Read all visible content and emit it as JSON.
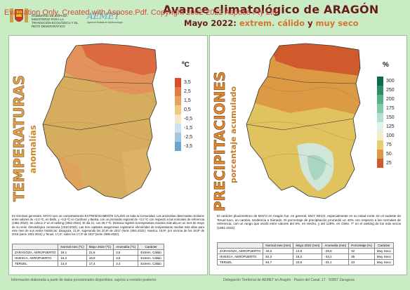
{
  "watermark": "Evaluation Only. Created with Aspose.Pdf. Copyright 2002-2022 Aspose Pty Ltd.",
  "header": {
    "title": "Avance climatológico de ARAGÓN",
    "subtitle_prefix": "Mayo 2022:",
    "subtitle_hot": "extrem. cálido",
    "subtitle_and": "y",
    "subtitle_dry": "muy seco",
    "logo_gov_text": "GOBIERNO DE ESPAÑA MINISTERIO PARA LA TRANSICIÓN ECOLÓGICA Y EL RETO DEMOGRÁFICO",
    "logo_aemet": "AEMET",
    "logo_aemet_sub": "Agencia Estatal de Meteorología"
  },
  "left_panel": {
    "vertical_title": "TEMPERATURAS",
    "vertical_subtitle": "anomalías",
    "legend_title": "ºC",
    "legend": [
      {
        "label": "3,5",
        "color": "#d94b2b"
      },
      {
        "label": "2,5",
        "color": "#e37a3f"
      },
      {
        "label": "1,5",
        "color": "#e9a25a"
      },
      {
        "label": "0,5",
        "color": "#eec983"
      },
      {
        "label": "-0,5",
        "color": "#f3e9c6"
      },
      {
        "label": "-1,5",
        "color": "#cfe3ef"
      },
      {
        "label": "-2,5",
        "color": "#9fc8e2"
      },
      {
        "label": "-3,5",
        "color": "#6aa5d2"
      }
    ],
    "paragraph": "En términos generales, MAYO tuvo un comportamiento EXTREMADAMENTE CÁLIDO en toda la Comunidad. Las anomalías observadas oscilaron entre valores de +2,0 ºC, en Bello, y +4,5 ºC en Canfranc y Bielsa, con un promedio regional de +3,2 ºC con respecto a las normales de referencia (1981-2010). Se coloca 1º en el ranking (1961-2022). El día 21, con 36,7 ºC. Destaca registró la temperatura máxima más alta en un mes de mayo de su serie climatológica centenaria (1910-2022). Las tres capitales aragonesas registraron efemérides de temperaturas medias más altas para este mes de sus series históricas: Zaragoza, 21,6º, superando los 20,8º de 2017 (serie 1951-2022); Huesca, 19,9º, por encima de los 18,9º de 2015 (serie 1931-2022) y Teruel, 17,4º, sobre los 17,3º de 2017 (serie 1986-2022).",
    "table": {
      "headers": [
        "",
        "Normal mes (ºC)",
        "Mayo 2022 (ºC)",
        "Anomalía (ºC)",
        "Carácter"
      ],
      "rows": [
        [
          "ZARAGOZA, AEROPUERTO",
          "18,1",
          "21,6",
          "3,5",
          "Extrem. Cálido"
        ],
        [
          "HUESCA, AEROPUERTO",
          "16,3",
          "19,9",
          "3,6",
          "Extrem. Cálido"
        ],
        [
          "TERUEL",
          "14,0",
          "17,4",
          "3,4",
          "Extrem. Cálido"
        ]
      ]
    }
  },
  "right_panel": {
    "vertical_title": "PRECIPITACIONES",
    "vertical_subtitle": "porcentaje acumulado",
    "legend_title": "%",
    "legend": [
      {
        "label": "300",
        "color": "#0e6b4a"
      },
      {
        "label": "250",
        "color": "#2a8f64"
      },
      {
        "label": "200",
        "color": "#56b08a"
      },
      {
        "label": "175",
        "color": "#85c9ad"
      },
      {
        "label": "150",
        "color": "#b3dfce"
      },
      {
        "label": "125",
        "color": "#e3f1eb"
      },
      {
        "label": "100",
        "color": "#f3efc4"
      },
      {
        "label": "75",
        "color": "#e4cf74"
      },
      {
        "label": "50",
        "color": "#dd9a45"
      },
      {
        "label": "25",
        "color": "#cf5a2c"
      }
    ],
    "paragraph": "El carácter pluviométrico de MAYO en Aragón fue, en general, MUY SECO, especialmente en su mitad norte. En el sudeste de Teruel tuvo, en cambio, tendencia a húmedo. El porcentaje de precipitación promedió un 40% con respecto a las normales de referencia, con un rango que osciló entre valores del 6%, en Hecho, y del 129%, en Olete. 7º en el ranking de los más secos (1961-2022).",
    "table": {
      "headers": [
        "",
        "Normal mes (mm)",
        "Mayo 2022 (mm)",
        "Anomalía (mm)",
        "Porcentaje (%)",
        "Carácter"
      ],
      "rows": [
        [
          "ZARAGOZA, AEROPUERTO",
          "43,6",
          "13,8",
          "-29,8",
          "32",
          "Muy Seco"
        ],
        [
          "HUESCA, AEROPUERTO",
          "52,3",
          "18,2",
          "-34,1",
          "35",
          "Muy Seco"
        ],
        [
          "TERUEL",
          "54,7",
          "23,6",
          "-31,1",
          "43",
          "Muy Seco"
        ]
      ]
    }
  },
  "footer": {
    "left": "Información elaborada a partir de datos provisionales disponibles, sujetos a revisión posterior.",
    "right": "Delegación Territorial de AEMET en Aragón · Paseo del Canal, 17 · 50007 Zaragoza"
  }
}
